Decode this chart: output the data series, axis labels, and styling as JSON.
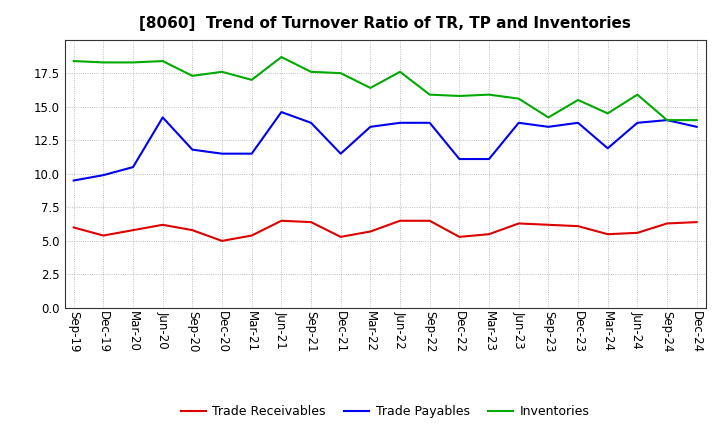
{
  "title": "[8060]  Trend of Turnover Ratio of TR, TP and Inventories",
  "x_labels": [
    "Sep-19",
    "Dec-19",
    "Mar-20",
    "Jun-20",
    "Sep-20",
    "Dec-20",
    "Mar-21",
    "Jun-21",
    "Sep-21",
    "Dec-21",
    "Mar-22",
    "Jun-22",
    "Sep-22",
    "Dec-22",
    "Mar-23",
    "Jun-23",
    "Sep-23",
    "Dec-23",
    "Mar-24",
    "Jun-24",
    "Sep-24",
    "Dec-24"
  ],
  "trade_receivables": [
    6.0,
    5.4,
    5.8,
    6.2,
    5.8,
    5.0,
    5.4,
    6.5,
    6.4,
    5.3,
    5.7,
    6.5,
    6.5,
    5.3,
    5.5,
    6.3,
    6.2,
    6.1,
    5.5,
    5.6,
    6.3,
    6.4
  ],
  "trade_payables": [
    9.5,
    9.9,
    10.5,
    14.2,
    11.8,
    11.5,
    11.5,
    14.6,
    13.8,
    11.5,
    13.5,
    13.8,
    13.8,
    11.1,
    11.1,
    13.8,
    13.5,
    13.8,
    11.9,
    13.8,
    14.0,
    13.5
  ],
  "inventories": [
    18.4,
    18.3,
    18.3,
    18.4,
    17.3,
    17.6,
    17.0,
    18.7,
    17.6,
    17.5,
    16.4,
    17.6,
    15.9,
    15.8,
    15.9,
    15.6,
    14.2,
    15.5,
    14.5,
    15.9,
    14.0,
    14.0
  ],
  "ylim": [
    0,
    20
  ],
  "yticks": [
    0.0,
    2.5,
    5.0,
    7.5,
    10.0,
    12.5,
    15.0,
    17.5
  ],
  "line_colors": {
    "trade_receivables": "#dd0000",
    "trade_payables": "#0000ee",
    "inventories": "#00aa00"
  },
  "legend_labels": [
    "Trade Receivables",
    "Trade Payables",
    "Inventories"
  ],
  "background_color": "#ffffff",
  "grid_color": "#888888",
  "title_fontsize": 11,
  "axis_fontsize": 8.5,
  "legend_fontsize": 9
}
